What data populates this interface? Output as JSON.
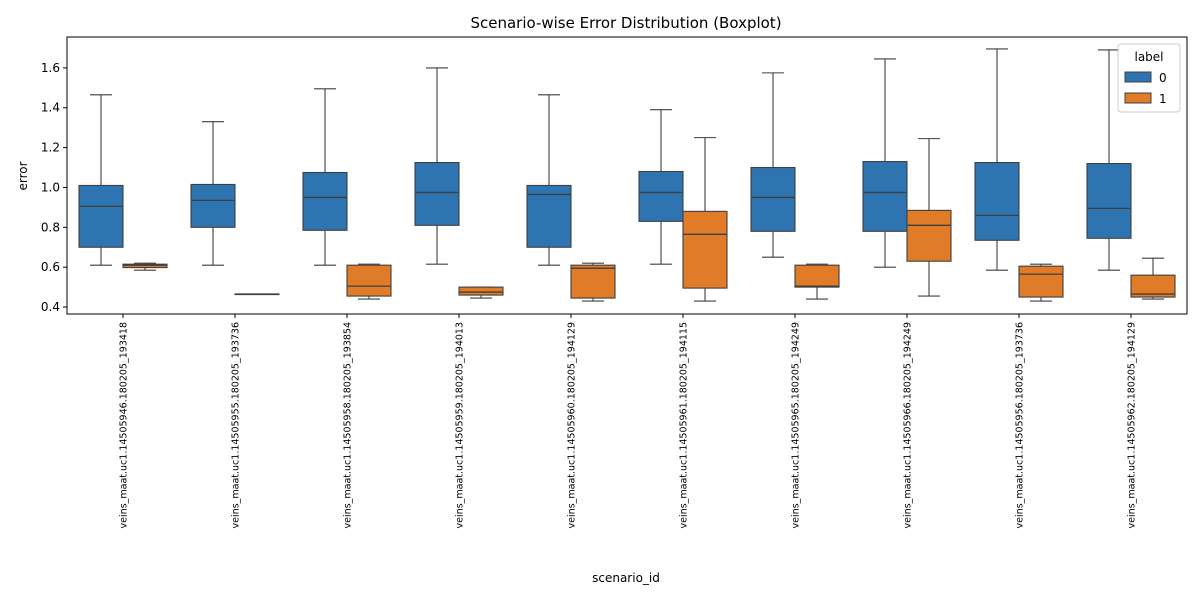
{
  "chart_data": {
    "type": "boxplot",
    "title": "Scenario-wise Error Distribution (Boxplot)",
    "xlabel": "scenario_id",
    "ylabel": "error",
    "ylim": [
      0.365,
      1.755
    ],
    "yticks": [
      0.4,
      0.6,
      0.8,
      1.0,
      1.2,
      1.4,
      1.6
    ],
    "grid": false,
    "legend": {
      "title": "label",
      "placement": "top-right"
    },
    "categories": [
      "veins_maat.uc1.14505946.180205_193418",
      "veins_maat.uc1.14505955.180205_193736",
      "veins_maat.uc1.14505958.180205_193854",
      "veins_maat.uc1.14505959.180205_194013",
      "veins_maat.uc1.14505960.180205_194129",
      "veins_maat.uc1.14505961.180205_194115",
      "veins_maat.uc1.14505965.180205_194249",
      "veins_maat.uc1.14505966.180205_194249",
      "veins_maat.uc1.14505956.180205_193736",
      "veins_maat.uc1.14505962.180205_194129"
    ],
    "series": [
      {
        "name": "0",
        "color": "#2e74b0",
        "boxes": [
          {
            "whislo": 0.61,
            "q1": 0.7,
            "med": 0.905,
            "q3": 1.01,
            "whishi": 1.465
          },
          {
            "whislo": 0.61,
            "q1": 0.8,
            "med": 0.935,
            "q3": 1.015,
            "whishi": 1.33
          },
          {
            "whislo": 0.61,
            "q1": 0.785,
            "med": 0.95,
            "q3": 1.075,
            "whishi": 1.495
          },
          {
            "whislo": 0.615,
            "q1": 0.81,
            "med": 0.975,
            "q3": 1.125,
            "whishi": 1.6
          },
          {
            "whislo": 0.61,
            "q1": 0.7,
            "med": 0.965,
            "q3": 1.01,
            "whishi": 1.465
          },
          {
            "whislo": 0.615,
            "q1": 0.83,
            "med": 0.975,
            "q3": 1.08,
            "whishi": 1.39
          },
          {
            "whislo": 0.65,
            "q1": 0.78,
            "med": 0.95,
            "q3": 1.1,
            "whishi": 1.575
          },
          {
            "whislo": 0.6,
            "q1": 0.78,
            "med": 0.975,
            "q3": 1.13,
            "whishi": 1.645
          },
          {
            "whislo": 0.585,
            "q1": 0.735,
            "med": 0.86,
            "q3": 1.125,
            "whishi": 1.695
          },
          {
            "whislo": 0.585,
            "q1": 0.745,
            "med": 0.895,
            "q3": 1.12,
            "whishi": 1.69
          }
        ]
      },
      {
        "name": "1",
        "color": "#e07b28",
        "boxes": [
          {
            "whislo": 0.585,
            "q1": 0.598,
            "med": 0.61,
            "q3": 0.615,
            "whishi": 0.62
          },
          {
            "whislo": 0.465,
            "q1": 0.465,
            "med": 0.465,
            "q3": 0.465,
            "whishi": 0.465
          },
          {
            "whislo": 0.44,
            "q1": 0.455,
            "med": 0.505,
            "q3": 0.61,
            "whishi": 0.615
          },
          {
            "whislo": 0.445,
            "q1": 0.46,
            "med": 0.475,
            "q3": 0.5,
            "whishi": 0.5
          },
          {
            "whislo": 0.43,
            "q1": 0.445,
            "med": 0.595,
            "q3": 0.61,
            "whishi": 0.62
          },
          {
            "whislo": 0.43,
            "q1": 0.495,
            "med": 0.765,
            "q3": 0.88,
            "whishi": 1.25
          },
          {
            "whislo": 0.44,
            "q1": 0.5,
            "med": 0.505,
            "q3": 0.61,
            "whishi": 0.615
          },
          {
            "whislo": 0.455,
            "q1": 0.63,
            "med": 0.81,
            "q3": 0.885,
            "whishi": 1.245
          },
          {
            "whislo": 0.43,
            "q1": 0.45,
            "med": 0.565,
            "q3": 0.605,
            "whishi": 0.615
          },
          {
            "whislo": 0.44,
            "q1": 0.45,
            "med": 0.465,
            "q3": 0.56,
            "whishi": 0.645
          }
        ]
      }
    ]
  }
}
